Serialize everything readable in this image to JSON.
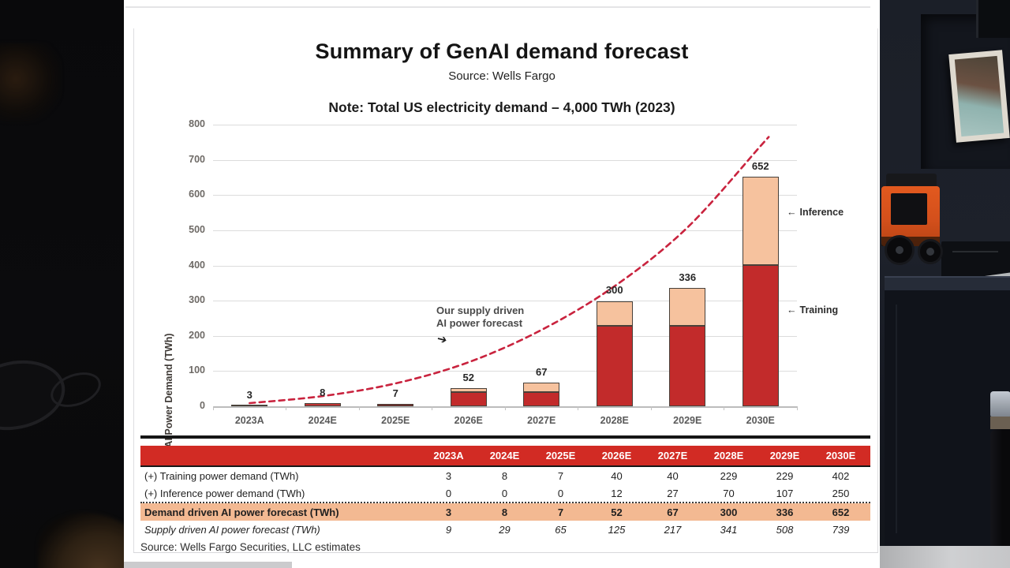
{
  "slide": {
    "title": "Summary of GenAI demand forecast",
    "subtitle": "Source: Wells Fargo",
    "note": "Note: Total US electricity demand – 4,000 TWh (2023)"
  },
  "chart_data": {
    "type": "bar",
    "stacked": true,
    "title": "Summary of GenAI demand forecast",
    "subtitle": "Source: Wells Fargo",
    "note": "Note: Total US electricity demand – 4,000 TWh (2023)",
    "ylabel": "AI Power Demand (TWh)",
    "ylim": [
      0,
      800
    ],
    "ytick_step": 100,
    "grid": true,
    "categories": [
      "2023A",
      "2024E",
      "2025E",
      "2026E",
      "2027E",
      "2028E",
      "2029E",
      "2030E"
    ],
    "series": [
      {
        "name": "Training",
        "values": [
          3,
          8,
          7,
          40,
          40,
          229,
          229,
          402
        ]
      },
      {
        "name": "Inference",
        "values": [
          0,
          0,
          0,
          12,
          27,
          70,
          107,
          250
        ]
      }
    ],
    "totals": [
      3,
      8,
      7,
      52,
      67,
      300,
      336,
      652
    ],
    "line_overlay": {
      "name": "Supply driven AI power forecast",
      "style": "dashed",
      "values": [
        9,
        29,
        65,
        125,
        217,
        341,
        508,
        739
      ]
    },
    "annotations": {
      "supply_line1": "Our supply driven",
      "supply_line2": "AI power forecast",
      "supply_arrow": "➔",
      "inference_arrow": "←",
      "inference": "Inference",
      "training_arrow": "←",
      "training": "Training"
    },
    "bar_colors": {
      "training_per_bar": [
        "#3d3d3d",
        "#c03434",
        "#7f2222",
        "#c22b2b",
        "#c22b2b",
        "#c22b2b",
        "#c22b2b",
        "#c22b2b"
      ],
      "inference": "#f6c29e",
      "outline": "#48413a",
      "line": "#c9233e"
    }
  },
  "table": {
    "header": [
      "",
      "2023A",
      "2024E",
      "2025E",
      "2026E",
      "2027E",
      "2028E",
      "2029E",
      "2030E"
    ],
    "rows": [
      {
        "label": "(+) Training power demand (TWh)",
        "values": [
          "3",
          "8",
          "7",
          "40",
          "40",
          "229",
          "229",
          "402"
        ],
        "style": "plain"
      },
      {
        "label": "(+) Inference power demand (TWh)",
        "values": [
          "0",
          "0",
          "0",
          "12",
          "27",
          "70",
          "107",
          "250"
        ],
        "style": "dotted"
      },
      {
        "label": "Demand driven AI power forecast (TWh)",
        "values": [
          "3",
          "8",
          "7",
          "52",
          "67",
          "300",
          "336",
          "652"
        ],
        "style": "highlight"
      },
      {
        "label": "Supply driven AI power forecast (TWh)",
        "values": [
          "9",
          "29",
          "65",
          "125",
          "217",
          "341",
          "508",
          "739"
        ],
        "style": "ital"
      }
    ],
    "source": "Source: Wells Fargo Securities, LLC estimates"
  },
  "colors": {
    "table_header_red": "#d22b24",
    "table_highlight_peach": "#f3b992",
    "bar_red": "#c22b2b",
    "bar_peach": "#f6c29e",
    "curve_red": "#c9233e"
  }
}
